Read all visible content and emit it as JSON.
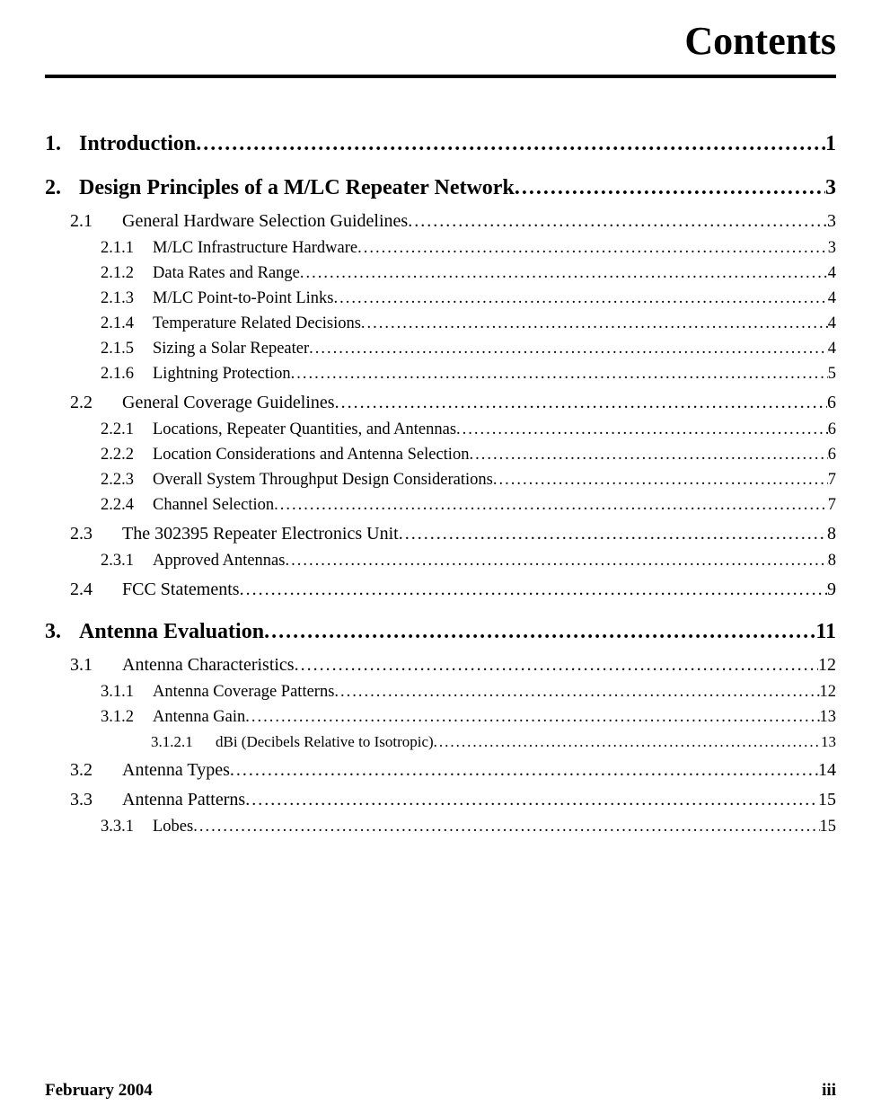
{
  "title": "Contents",
  "footer": {
    "left": "February 2004",
    "right": "iii"
  },
  "entries": [
    {
      "level": 1,
      "num": "1.",
      "title": "Introduction",
      "page": "1"
    },
    {
      "level": 1,
      "num": "2.",
      "title": "Design Principles of a M/LC Repeater Network",
      "page": "3"
    },
    {
      "level": 2,
      "num": "2.1",
      "title": "General Hardware Selection Guidelines",
      "page": "3"
    },
    {
      "level": 3,
      "num": "2.1.1",
      "title": "M/LC Infrastructure Hardware",
      "page": "3"
    },
    {
      "level": 3,
      "num": "2.1.2",
      "title": "Data Rates and Range",
      "page": "4"
    },
    {
      "level": 3,
      "num": "2.1.3",
      "title": "M/LC Point-to-Point Links",
      "page": "4"
    },
    {
      "level": 3,
      "num": "2.1.4",
      "title": "Temperature Related Decisions",
      "page": "4"
    },
    {
      "level": 3,
      "num": "2.1.5",
      "title": "Sizing a Solar Repeater",
      "page": "4"
    },
    {
      "level": 3,
      "num": "2.1.6",
      "title": "Lightning Protection",
      "page": "5"
    },
    {
      "level": 2,
      "num": "2.2",
      "title": "General Coverage Guidelines",
      "page": "6"
    },
    {
      "level": 3,
      "num": "2.2.1",
      "title": "Locations, Repeater Quantities, and Antennas",
      "page": "6"
    },
    {
      "level": 3,
      "num": "2.2.2",
      "title": "Location Considerations and Antenna Selection",
      "page": "6"
    },
    {
      "level": 3,
      "num": "2.2.3",
      "title": "Overall System Throughput Design Considerations",
      "page": "7"
    },
    {
      "level": 3,
      "num": "2.2.4",
      "title": "Channel Selection",
      "page": "7"
    },
    {
      "level": 2,
      "num": "2.3",
      "title": "The 302395 Repeater Electronics Unit",
      "page": "8"
    },
    {
      "level": 3,
      "num": "2.3.1",
      "title": "Approved Antennas",
      "page": "8"
    },
    {
      "level": 2,
      "num": "2.4",
      "title": "FCC Statements",
      "page": "9"
    },
    {
      "level": 1,
      "num": "3.",
      "title": "Antenna Evaluation",
      "page": "11"
    },
    {
      "level": 2,
      "num": "3.1",
      "title": "Antenna Characteristics",
      "page": "12"
    },
    {
      "level": 3,
      "num": "3.1.1",
      "title": "Antenna Coverage Patterns",
      "page": "12"
    },
    {
      "level": 3,
      "num": "3.1.2",
      "title": "Antenna Gain",
      "page": "13"
    },
    {
      "level": 4,
      "num": "3.1.2.1",
      "title": "dBi (Decibels Relative to Isotropic)",
      "page": "13"
    },
    {
      "level": 2,
      "num": "3.2",
      "title": "Antenna Types",
      "page": "14"
    },
    {
      "level": 2,
      "num": "3.3",
      "title": "Antenna Patterns",
      "page": "15"
    },
    {
      "level": 3,
      "num": "3.3.1",
      "title": "Lobes",
      "page": "15"
    }
  ]
}
